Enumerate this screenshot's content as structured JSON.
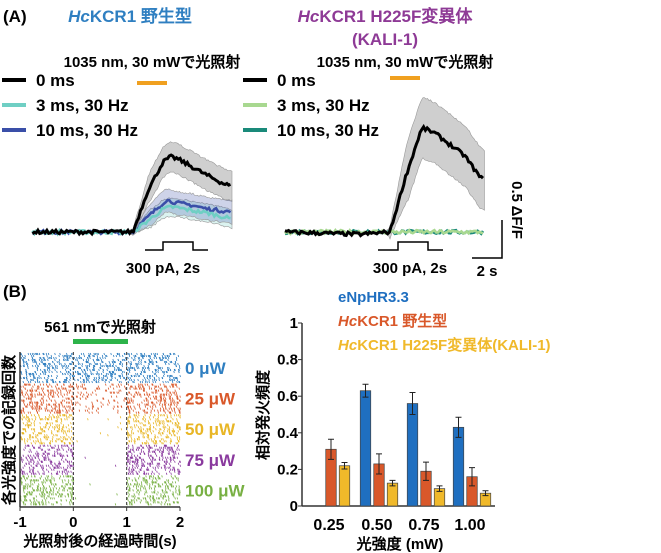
{
  "panel_a": {
    "label": "(A)",
    "stim_label": "1035 nm, 30 mWで光照射",
    "current_label": "300 pA, 2s",
    "scale_y_label": "0.5 ΔF/F",
    "scale_x_label": "2 s",
    "stim_color": "#f0a020"
  },
  "panel_b": {
    "label": "(B)",
    "stim_label": "561 nmで光照射",
    "stim_color": "#2db34a"
  },
  "chart_data": [
    {
      "type": "line",
      "title_italic": "Hc",
      "title": "KCR1 野生型",
      "title_color": "#2f7fc1",
      "x_unit": "s",
      "series": [
        {
          "name": "0 ms",
          "color": "#000000",
          "band": 0.2,
          "t": [
            -6.7,
            -2,
            0,
            1,
            2,
            2.5,
            3,
            4,
            5,
            6,
            6.6
          ],
          "y": [
            0,
            0,
            0,
            0.55,
            0.92,
            0.99,
            0.96,
            0.85,
            0.74,
            0.64,
            0.6
          ]
        },
        {
          "name": "3 ms, 30 Hz",
          "color": "#6fcfc4",
          "band": 0.12,
          "t": [
            -6.7,
            -2,
            0,
            1,
            2,
            2.5,
            3,
            4,
            5,
            6,
            6.6
          ],
          "y": [
            0,
            0,
            0,
            0.15,
            0.3,
            0.33,
            0.32,
            0.28,
            0.25,
            0.2,
            0.17
          ]
        },
        {
          "name": "10 ms, 30 Hz",
          "color": "#3a4fa8",
          "band": 0.15,
          "t": [
            -6.7,
            -2,
            0,
            1,
            2,
            2.2,
            3,
            4,
            5,
            6,
            6.6
          ],
          "y": [
            0,
            0,
            0,
            0.2,
            0.38,
            0.42,
            0.38,
            0.35,
            0.3,
            0.28,
            0.26
          ]
        }
      ]
    },
    {
      "type": "line",
      "title_italic": "Hc",
      "title": "KCR1 H225F変異体",
      "subtitle": "(KALI-1)",
      "title_color": "#8e3a96",
      "x_unit": "s",
      "series": [
        {
          "name": "0 ms",
          "color": "#000000",
          "band": 0.4,
          "t": [
            -7,
            -2,
            0,
            1,
            2,
            2.2,
            3,
            4,
            5,
            6,
            6.3
          ],
          "y": [
            0,
            -0.03,
            0,
            0.7,
            1.3,
            1.37,
            1.3,
            1.15,
            1.0,
            0.72,
            0.68
          ]
        },
        {
          "name": "3 ms, 30 Hz",
          "color": "#a8d890",
          "band": 0,
          "t": [
            -7,
            6.3
          ],
          "y": [
            0,
            0
          ]
        },
        {
          "name": "10 ms, 30 Hz",
          "color": "#1a8a7a",
          "band": 0,
          "t": [
            -7,
            6.3
          ],
          "y": [
            0,
            0
          ]
        }
      ]
    },
    {
      "type": "scatter",
      "subtype": "raster",
      "xlabel": "光照射後の経過時間(s)",
      "ylabel": "各光強度での記録回数",
      "xlim": [
        -1,
        2
      ],
      "xticks": [
        "-1",
        "0",
        "1",
        "2"
      ],
      "light_on": [
        0,
        1
      ],
      "groups": [
        {
          "name": "0 μW",
          "color": "#2f7fc1",
          "relative_rate_during_light": 1.0
        },
        {
          "name": "25 μW",
          "color": "#d9582a",
          "relative_rate_during_light": 0.4
        },
        {
          "name": "50 μW",
          "color": "#e8b626",
          "relative_rate_during_light": 0.02
        },
        {
          "name": "75 μW",
          "color": "#8a3a9e",
          "relative_rate_during_light": 0.006
        },
        {
          "name": "100 μW",
          "color": "#78b043",
          "relative_rate_during_light": 0.004
        }
      ]
    },
    {
      "type": "bar",
      "xlabel": "光強度 (mW)",
      "ylabel": "相対発火頻度",
      "ylim": [
        0,
        1
      ],
      "yticks": [
        "0",
        "0.2",
        "0.4",
        "0.6",
        "0.8",
        "1"
      ],
      "categories": [
        "0.25",
        "0.50",
        "0.75",
        "1.00"
      ],
      "series": [
        {
          "name": "eNpHR3.3",
          "color": "#1f6fc0",
          "values": [
            null,
            0.63,
            0.56,
            0.43
          ],
          "errors": [
            null,
            0.035,
            0.06,
            0.055
          ]
        },
        {
          "name_italic": "Hc",
          "name": "KCR1 野生型",
          "color": "#d9582a",
          "values": [
            0.31,
            0.23,
            0.19,
            0.16
          ],
          "errors": [
            0.055,
            0.055,
            0.05,
            0.05
          ]
        },
        {
          "name_italic": "Hc",
          "name": "KCR1 H225F変異体(KALI-1)",
          "color": "#f0b92a",
          "values": [
            0.22,
            0.125,
            0.095,
            0.07
          ],
          "errors": [
            0.018,
            0.015,
            0.015,
            0.013
          ]
        }
      ],
      "legend": "top"
    }
  ]
}
